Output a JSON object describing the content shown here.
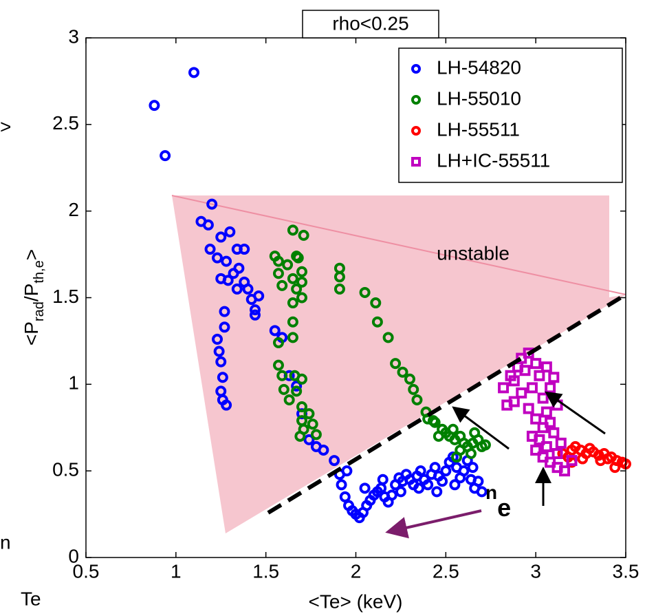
{
  "chart_data": {
    "type": "scatter",
    "title": "rho<0.25",
    "xlabel": "<Te> (keV)",
    "ylabel_parts": [
      "<P",
      "rad",
      "/P",
      "th,e",
      ">"
    ],
    "annotations": {
      "region": "unstable",
      "density": "n",
      "density_sub": "e"
    },
    "fragments": [
      ">",
      "n",
      "Te"
    ],
    "xlim": [
      0.5,
      3.5
    ],
    "xticks": [
      0.5,
      1,
      1.5,
      2,
      2.5,
      3,
      3.5
    ],
    "ylim": [
      0,
      3
    ],
    "yticks": [
      0,
      0.5,
      1,
      1.5,
      2,
      2.5,
      3
    ],
    "legend": "upper right",
    "series": [
      {
        "name": "LH-54820",
        "color": "#0000ff",
        "marker": "circle",
        "x": [
          0.88,
          1.1,
          0.94,
          1.2,
          1.14,
          1.18,
          1.25,
          1.3,
          1.19,
          1.34,
          1.38,
          1.23,
          1.28,
          1.35,
          1.32,
          1.25,
          1.29,
          1.38,
          1.34,
          1.4,
          1.42,
          1.46,
          1.44,
          1.44,
          1.27,
          1.27,
          1.23,
          1.24,
          1.25,
          1.26,
          1.25,
          1.26,
          1.28,
          1.55,
          1.59,
          1.63,
          1.67,
          1.7,
          1.74,
          1.78,
          1.82,
          1.88,
          1.91,
          1.92,
          1.94,
          1.96,
          1.98,
          2.0,
          2.02,
          2.04,
          2.06,
          2.08,
          2.1,
          2.12,
          2.14,
          2.16,
          2.18,
          2.2,
          2.22,
          2.24,
          2.26,
          2.28,
          2.3,
          2.32,
          2.34,
          2.36,
          2.38,
          2.4,
          2.42,
          2.44,
          2.46,
          2.48,
          2.5,
          2.52,
          2.54,
          2.56,
          2.58,
          2.6,
          2.62,
          2.64,
          2.66,
          2.68,
          2.7,
          1.95,
          2.05,
          2.15,
          2.25,
          2.35,
          2.45,
          2.55,
          2.65
        ],
        "values": [
          2.61,
          2.8,
          2.32,
          2.04,
          1.94,
          1.92,
          1.85,
          1.88,
          1.78,
          1.78,
          1.78,
          1.73,
          1.71,
          1.67,
          1.64,
          1.61,
          1.6,
          1.59,
          1.55,
          1.55,
          1.49,
          1.51,
          1.43,
          1.4,
          1.42,
          1.33,
          1.26,
          1.19,
          1.13,
          1.04,
          0.96,
          0.91,
          0.88,
          1.31,
          1.27,
          1.05,
          0.99,
          0.83,
          0.68,
          0.64,
          0.62,
          0.56,
          0.48,
          0.42,
          0.35,
          0.3,
          0.27,
          0.25,
          0.23,
          0.26,
          0.3,
          0.33,
          0.36,
          0.38,
          0.4,
          0.35,
          0.32,
          0.36,
          0.42,
          0.46,
          0.44,
          0.48,
          0.45,
          0.42,
          0.47,
          0.5,
          0.45,
          0.42,
          0.48,
          0.52,
          0.47,
          0.44,
          0.5,
          0.55,
          0.58,
          0.52,
          0.46,
          0.5,
          0.56,
          0.45,
          0.4,
          0.44,
          0.38,
          0.5,
          0.4,
          0.45,
          0.38,
          0.4,
          0.38,
          0.42,
          0.52
        ]
      },
      {
        "name": "LH-55010",
        "color": "#008000",
        "marker": "circle",
        "x": [
          1.65,
          1.71,
          1.55,
          1.57,
          1.67,
          1.68,
          1.62,
          1.7,
          1.57,
          1.65,
          1.7,
          1.59,
          1.67,
          1.7,
          1.65,
          1.65,
          1.65,
          1.57,
          1.57,
          1.59,
          1.66,
          1.7,
          1.6,
          1.67,
          1.63,
          1.7,
          1.74,
          1.7,
          1.76,
          1.71,
          1.78,
          1.69,
          1.91,
          1.91,
          1.91,
          2.05,
          2.11,
          2.12,
          2.18,
          2.22,
          2.26,
          2.3,
          2.32,
          2.34,
          2.39,
          2.43,
          2.4,
          2.44,
          2.48,
          2.5,
          2.52,
          2.55,
          2.58,
          2.6,
          2.62,
          2.65,
          2.68,
          2.7,
          2.72,
          2.46,
          2.54,
          2.58,
          2.64,
          2.66,
          2.56
        ],
        "values": [
          1.89,
          1.86,
          1.74,
          1.71,
          1.74,
          1.73,
          1.69,
          1.65,
          1.64,
          1.61,
          1.59,
          1.57,
          1.55,
          1.5,
          1.47,
          1.36,
          1.27,
          1.24,
          1.11,
          1.05,
          1.05,
          1.03,
          0.97,
          0.96,
          0.91,
          0.87,
          0.83,
          0.79,
          0.77,
          0.74,
          0.71,
          0.7,
          1.67,
          1.62,
          1.55,
          1.53,
          1.47,
          1.36,
          1.27,
          1.12,
          1.07,
          1.03,
          0.97,
          0.91,
          0.84,
          0.79,
          0.8,
          0.78,
          0.74,
          0.72,
          0.7,
          0.68,
          0.7,
          0.66,
          0.64,
          0.66,
          0.68,
          0.64,
          0.65,
          0.7,
          0.74,
          0.62,
          0.6,
          0.72,
          0.58
        ]
      },
      {
        "name": "LH-55511",
        "color": "#ff0000",
        "marker": "circle",
        "x": [
          3.15,
          3.18,
          3.2,
          3.22,
          3.25,
          3.28,
          3.3,
          3.32,
          3.35,
          3.38,
          3.4,
          3.42,
          3.45,
          3.48,
          3.5,
          3.44,
          3.36,
          3.26,
          3.2
        ],
        "values": [
          0.6,
          0.58,
          0.62,
          0.64,
          0.62,
          0.6,
          0.63,
          0.61,
          0.59,
          0.6,
          0.57,
          0.58,
          0.56,
          0.55,
          0.54,
          0.52,
          0.56,
          0.57,
          0.55
        ]
      },
      {
        "name": "LH+IC-55511",
        "color": "#c000c0",
        "marker": "square",
        "x": [
          2.92,
          2.96,
          2.9,
          2.86,
          2.82,
          2.88,
          2.94,
          3.0,
          3.02,
          2.98,
          2.92,
          2.88,
          2.84,
          2.96,
          3.04,
          3.08,
          3.1,
          3.06,
          3.0,
          3.04,
          3.08,
          3.1,
          3.02,
          3.06,
          3.04,
          3.08,
          3.12,
          3.16,
          3.2,
          3.12,
          3.0,
          3.14,
          2.98,
          3.06,
          3.12
        ],
        "values": [
          1.15,
          1.18,
          1.1,
          1.05,
          0.98,
          1.02,
          1.08,
          1.12,
          1.05,
          0.98,
          0.95,
          0.9,
          0.88,
          0.86,
          0.92,
          0.98,
          1.04,
          1.1,
          0.8,
          0.75,
          0.78,
          0.72,
          0.68,
          0.64,
          0.58,
          0.55,
          0.52,
          0.5,
          0.56,
          0.6,
          0.62,
          0.66,
          0.7,
          0.84,
          0.88
        ]
      }
    ]
  }
}
